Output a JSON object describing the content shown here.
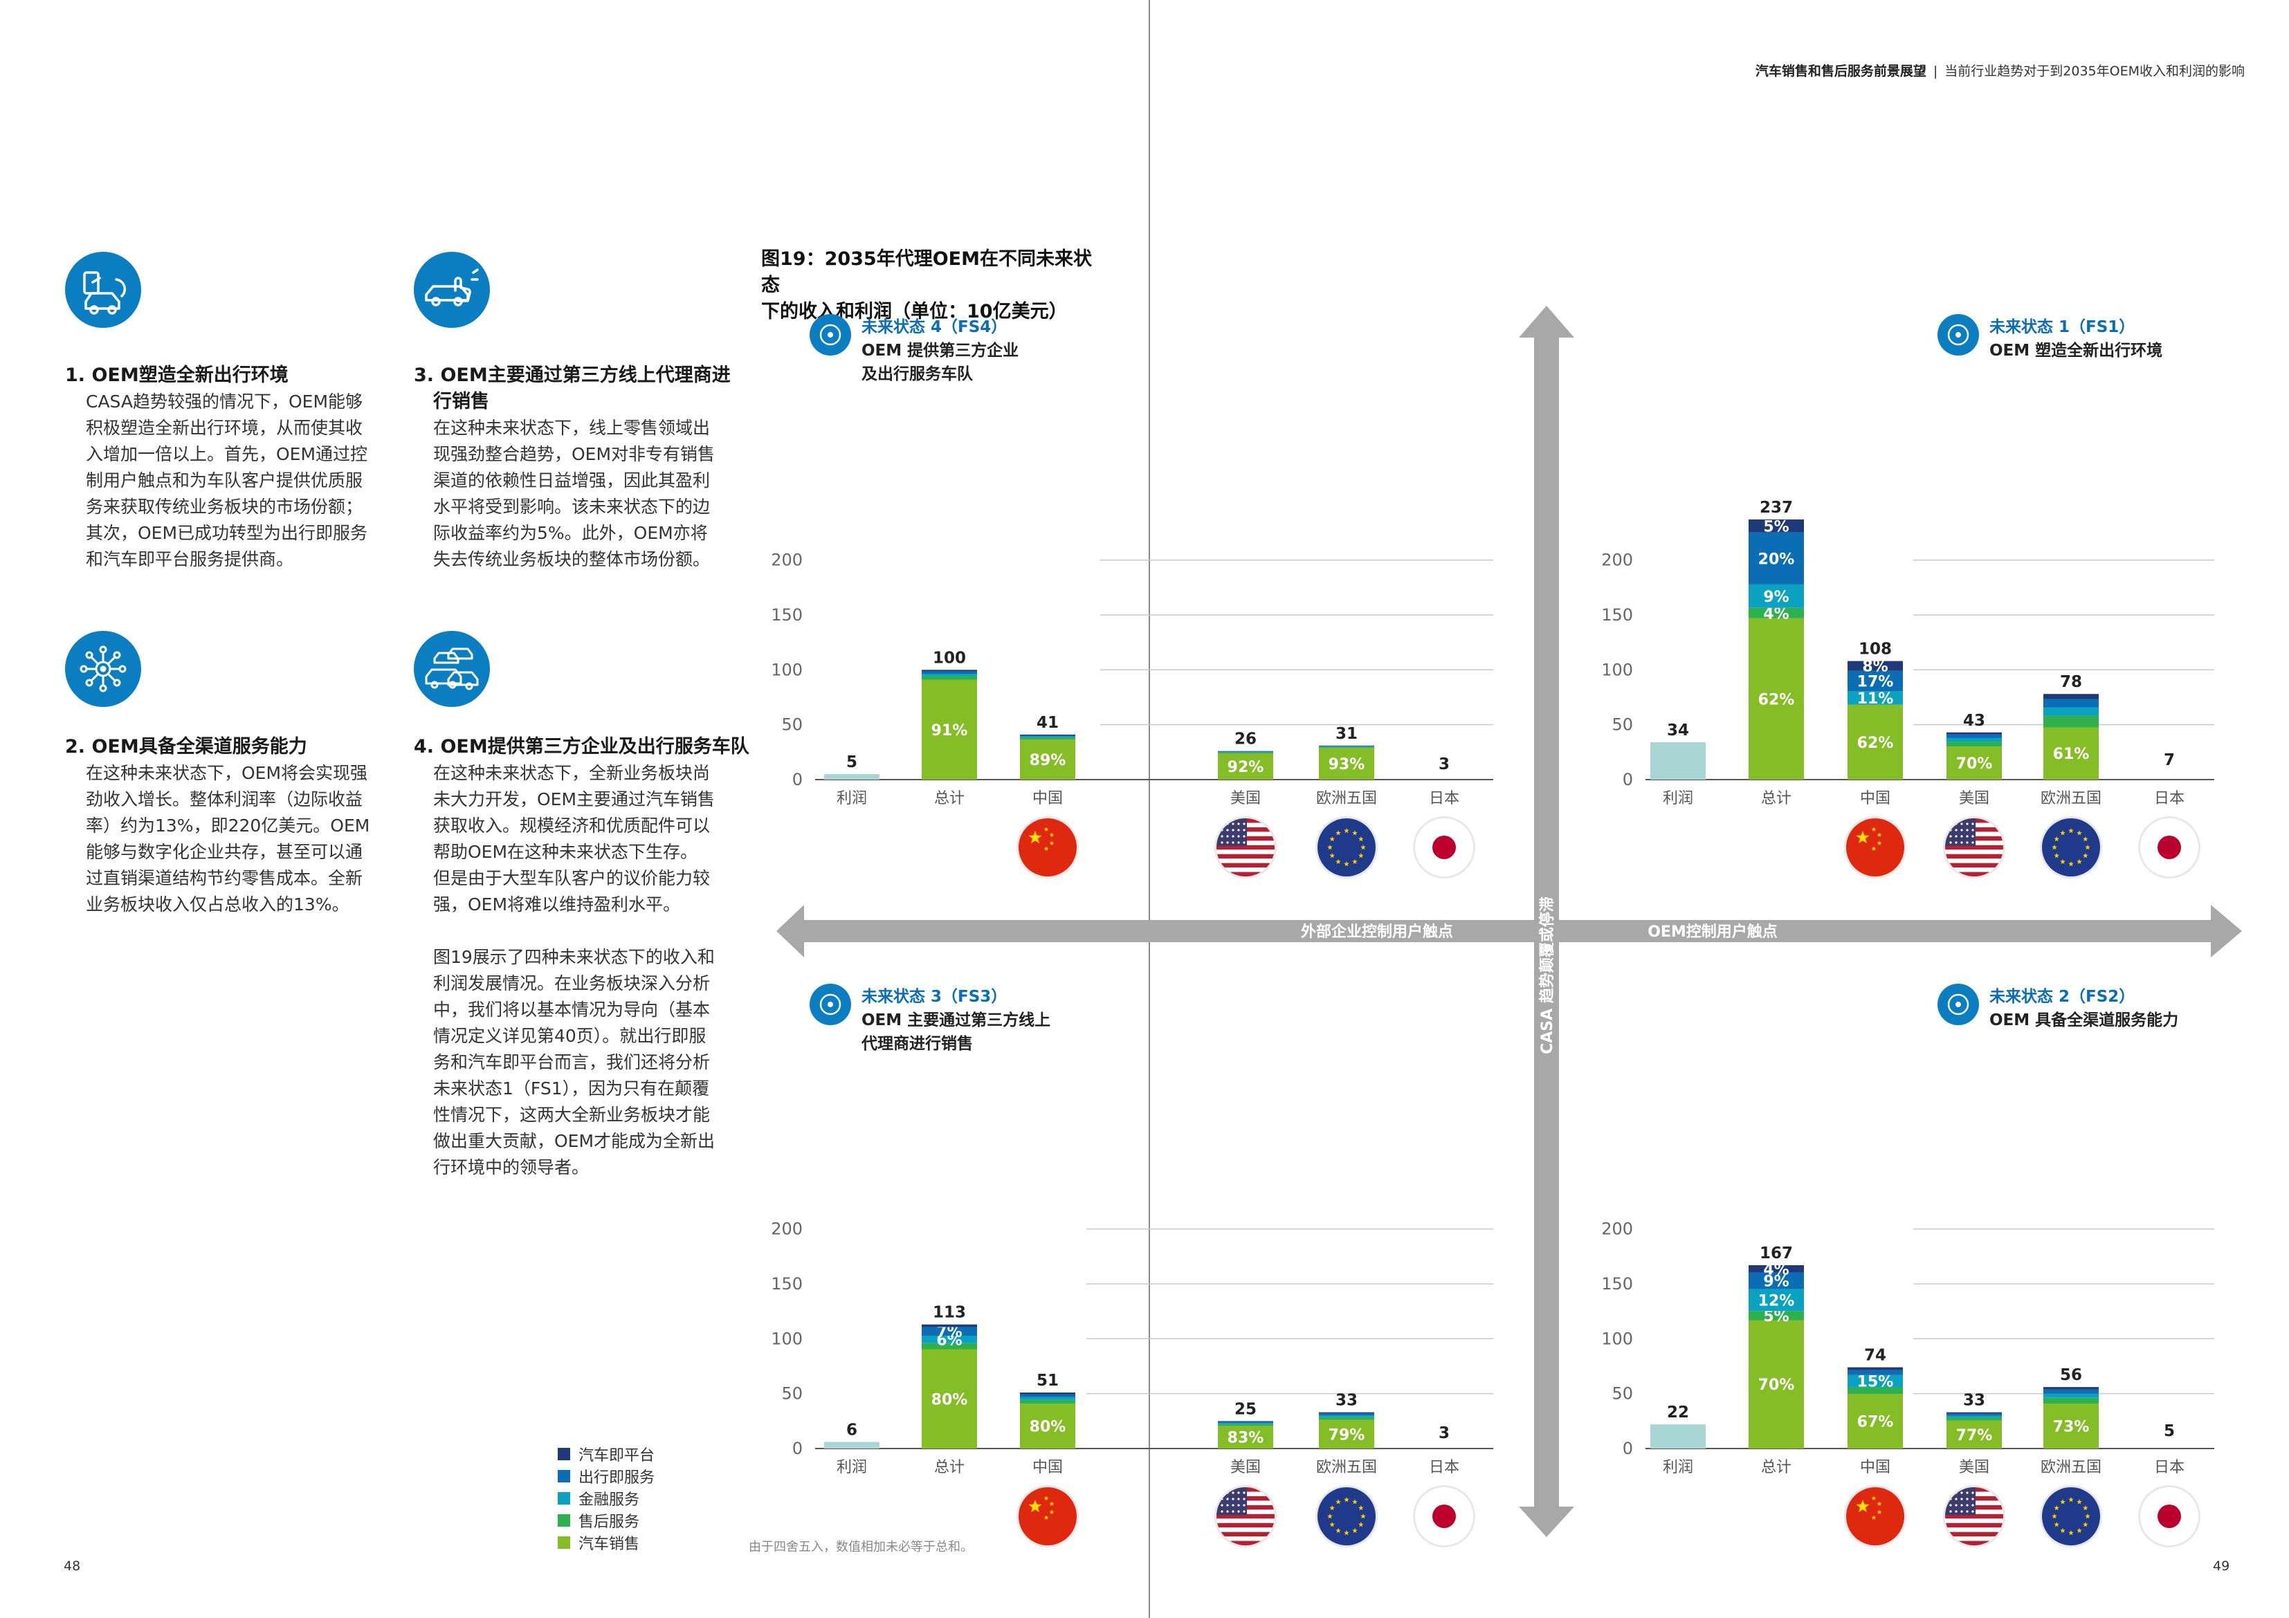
{
  "header": {
    "title": "汽车销售和售后服务前景展望",
    "subtitle": "当前行业趋势对于到2035年OEM收入和利润的影响"
  },
  "page_numbers": {
    "left": "48",
    "right": "49"
  },
  "items": [
    {
      "title": "1. OEM塑造全新出行环境",
      "body": [
        "CASA趋势较强的情况下，OEM能够",
        "积极塑造全新出行环境，从而使其收",
        "入增加一倍以上。首先，OEM通过控",
        "制用户触点和为车队客户提供优质服",
        "务来获取传统业务板块的市场份额；",
        "其次，OEM已成功转型为出行即服务",
        "和汽车即平台服务提供商。"
      ],
      "icon": "car-mobility-icon"
    },
    {
      "title": "2. OEM具备全渠道服务能力",
      "body": [
        "在这种未来状态下，OEM将会实现强",
        "劲收入增长。整体利润率（边际收益",
        "率）约为13%，即220亿美元。OEM",
        "能够与数字化企业共存，甚至可以通",
        "过直销渠道结构节约零售成本。全新",
        "业务板块收入仅占总收入的13%。"
      ],
      "icon": "network-hub-icon"
    },
    {
      "title_lines": [
        "3. OEM主要通过第三方线上代理商进",
        "行销售"
      ],
      "body": [
        "在这种未来状态下，线上零售领域出",
        "现强劲整合趋势，OEM对非专有销售",
        "渠道的依赖性日益增强，因此其盈利",
        "水平将受到影响。该未来状态下的边",
        "际收益率约为5%。此外，OEM亦将",
        "失去传统业务板块的整体市场份额。"
      ],
      "icon": "online-dealer-icon"
    },
    {
      "title": "4. OEM提供第三方企业及出行服务车队",
      "body": [
        "在这种未来状态下，全新业务板块尚",
        "未大力开发，OEM主要通过汽车销售",
        "获取收入。规模经济和优质配件可以",
        "帮助OEM在这种未来状态下生存。",
        "但是由于大型车队客户的议价能力较",
        "强，OEM将难以维持盈利水平。",
        "",
        "图19展示了四种未来状态下的收入和",
        "利润发展情况。在业务板块深入分析",
        "中，我们将以基本情况为导向（基本",
        "情况定义详见第40页）。就出行即服",
        "务和汽车即平台而言，我们还将分析",
        "未来状态1（FS1），因为只有在颠覆",
        "性情况下，这两大全新业务板块才能",
        "做出重大贡献，OEM才能成为全新出",
        "行环境中的领导者。"
      ],
      "icon": "fleet-cars-icon"
    }
  ],
  "figure": {
    "title_lines": [
      "图19：2035年代理OEM在不同未来状态",
      "下的收入和利润（单位：10亿美元）"
    ]
  },
  "axes": {
    "horizontal_left": "外部企业控制用户触点",
    "horizontal_right": "OEM控制用户触点",
    "vertical": "CASA 趋势颠覆或停滞"
  },
  "legend": [
    {
      "label": "汽车即平台",
      "color": "#1f3a7a"
    },
    {
      "label": "出行即服务",
      "color": "#0b6db4"
    },
    {
      "label": "金融服务",
      "color": "#0aa2c0"
    },
    {
      "label": "售后服务",
      "color": "#2eb04c"
    },
    {
      "label": "汽车销售",
      "color": "#84bd26"
    }
  ],
  "note": "由于四舍五入，数值相加未必等于总和。",
  "flags": {
    "中国": "china-flag-icon",
    "美国": "usa-flag-icon",
    "欧洲五国": "eu-flag-icon",
    "日本": "japan-flag-icon"
  },
  "chart_data": [
    {
      "type": "bar",
      "id": "FS4",
      "state": "未来状态 4（FS4）",
      "desc": [
        "OEM 提供第三方企业",
        "及出行服务车队"
      ],
      "icon": "fleet-cars-icon",
      "categories": [
        "利润",
        "总计",
        "中国",
        "美国",
        "欧洲五国",
        "日本"
      ],
      "totals": [
        5,
        100,
        41,
        26,
        31,
        3
      ],
      "ylim": [
        0,
        200
      ],
      "yticks": [
        0,
        50,
        100,
        150,
        200
      ],
      "pct": {
        "总计": {
          "汽车销售": "91%"
        },
        "中国": {
          "汽车销售": "89%"
        },
        "美国": {
          "汽车销售": "92%"
        },
        "欧洲五国": {
          "汽车销售": "93%"
        }
      }
    },
    {
      "type": "bar",
      "id": "FS1",
      "state": "未来状态 1（FS1）",
      "desc": [
        "OEM 塑造全新出行环境"
      ],
      "icon": "car-mobility-icon",
      "categories": [
        "利润",
        "总计",
        "中国",
        "美国",
        "欧洲五国",
        "日本"
      ],
      "totals": [
        34,
        237,
        108,
        43,
        78,
        7
      ],
      "ylim": [
        0,
        200
      ],
      "yticks": [
        0,
        50,
        100,
        150,
        200
      ],
      "pct": {
        "总计": {
          "汽车即平台": "5%",
          "出行即服务": "20%",
          "金融服务": "9%",
          "售后服务": "4%",
          "汽车销售": "62%"
        },
        "中国": {
          "汽车即平台": "8%",
          "出行即服务": "17%",
          "金融服务": "11%",
          "汽车销售": "62%"
        },
        "美国": {
          "汽车销售": "70%"
        },
        "欧洲五国": {
          "汽车销售": "61%"
        }
      }
    },
    {
      "type": "bar",
      "id": "FS3",
      "state": "未来状态 3（FS3）",
      "desc": [
        "OEM 主要通过第三方线上",
        "代理商进行销售"
      ],
      "icon": "online-dealer-icon",
      "categories": [
        "利润",
        "总计",
        "中国",
        "美国",
        "欧洲五国",
        "日本"
      ],
      "totals": [
        6,
        113,
        51,
        25,
        33,
        3
      ],
      "ylim": [
        0,
        200
      ],
      "yticks": [
        0,
        50,
        100,
        150,
        200
      ],
      "pct": {
        "总计": {
          "出行即服务": "7%",
          "金融服务": "6%",
          "汽车销售": "80%"
        },
        "中国": {
          "汽车销售": "80%"
        },
        "美国": {
          "汽车销售": "83%"
        },
        "欧洲五国": {
          "汽车销售": "79%"
        }
      }
    },
    {
      "type": "bar",
      "id": "FS2",
      "state": "未来状态 2（FS2）",
      "desc": [
        "OEM 具备全渠道服务能力"
      ],
      "icon": "network-hub-icon",
      "categories": [
        "利润",
        "总计",
        "中国",
        "美国",
        "欧洲五国",
        "日本"
      ],
      "totals": [
        22,
        167,
        74,
        33,
        56,
        5
      ],
      "ylim": [
        0,
        200
      ],
      "yticks": [
        0,
        50,
        100,
        150,
        200
      ],
      "pct": {
        "总计": {
          "汽车即平台": "4%",
          "出行即服务": "9%",
          "金融服务": "12%",
          "售后服务": "5%",
          "汽车销售": "70%"
        },
        "中国": {
          "金融服务": "15%",
          "汽车销售": "67%"
        },
        "美国": {
          "汽车销售": "77%"
        },
        "欧洲五国": {
          "汽车销售": "73%"
        }
      }
    }
  ]
}
